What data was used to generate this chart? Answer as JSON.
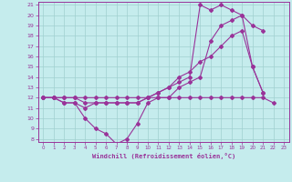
{
  "xlabel": "Windchill (Refroidissement éolien,°C)",
  "background_color": "#c5eced",
  "grid_color": "#a0d0d0",
  "line_color": "#993399",
  "xmin": 0,
  "xmax": 23,
  "ymin": 8,
  "ymax": 21,
  "line1_x": [
    0,
    1,
    2,
    3,
    4,
    5,
    6,
    7,
    8,
    9,
    10,
    11,
    12,
    13,
    14,
    15,
    16,
    17,
    18,
    19,
    20,
    21,
    22
  ],
  "line1_y": [
    12,
    12,
    12,
    12,
    12,
    12,
    12,
    12,
    12,
    12,
    12,
    12,
    12,
    12,
    12,
    12,
    12,
    12,
    12,
    12,
    12,
    12,
    11.5
  ],
  "line2_x": [
    0,
    1,
    2,
    3,
    4,
    5,
    6,
    7,
    8,
    9,
    10,
    11,
    12,
    13,
    14,
    15,
    16,
    17,
    18,
    19,
    20,
    21
  ],
  "line2_y": [
    12,
    12,
    11.5,
    11.5,
    10,
    9,
    8.5,
    7.5,
    8,
    9.5,
    11.5,
    12,
    12,
    13,
    13.5,
    14,
    17.5,
    19,
    19.5,
    20,
    15,
    12.5
  ],
  "line3_x": [
    0,
    1,
    2,
    3,
    4,
    5,
    6,
    7,
    8,
    9,
    10,
    11,
    12,
    13,
    14,
    15,
    16,
    17,
    18,
    19,
    20,
    21
  ],
  "line3_y": [
    12,
    12,
    11.5,
    11.5,
    11,
    11.5,
    11.5,
    11.5,
    11.5,
    11.5,
    12,
    12.5,
    13,
    13.5,
    14,
    21,
    20.5,
    21,
    20.5,
    20,
    19,
    18.5
  ],
  "line4_x": [
    0,
    1,
    2,
    3,
    4,
    5,
    6,
    7,
    8,
    9,
    10,
    11,
    12,
    13,
    14,
    15,
    16,
    17,
    18,
    19,
    20,
    21
  ],
  "line4_y": [
    12,
    12,
    12,
    12,
    11.5,
    11.5,
    11.5,
    11.5,
    11.5,
    11.5,
    12,
    12.5,
    13,
    14,
    14.5,
    15.5,
    16,
    17,
    18,
    18.5,
    15,
    12.5
  ]
}
